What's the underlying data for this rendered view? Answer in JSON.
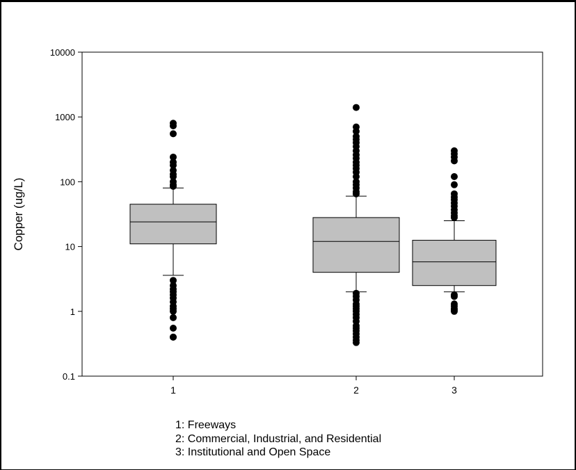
{
  "chart_data": {
    "type": "box",
    "y_scale": "log",
    "ylim": [
      0.1,
      10000
    ],
    "ylabel": "Copper (ug/L)",
    "y_ticks": [
      "0.1",
      "1",
      "10",
      "100",
      "1000",
      "10000"
    ],
    "categories": [
      "1",
      "2",
      "3"
    ],
    "box_fill": "#c0c0c0",
    "grid": false,
    "boxes": [
      {
        "category": "1",
        "whisker_low": 3.6,
        "q1": 11,
        "median": 24,
        "q3": 45,
        "whisker_high": 80,
        "outliers": [
          0.4,
          0.4,
          0.55,
          0.8,
          1.0,
          1.1,
          1.2,
          1.4,
          1.6,
          1.8,
          2.0,
          2.2,
          2.5,
          3.0,
          85,
          90,
          100,
          120,
          130,
          150,
          180,
          200,
          240,
          550,
          730,
          800
        ]
      },
      {
        "category": "2",
        "whisker_low": 2.0,
        "q1": 4.0,
        "median": 12,
        "q3": 28,
        "whisker_high": 60,
        "outliers": [
          0.33,
          0.36,
          0.4,
          0.45,
          0.5,
          0.55,
          0.6,
          0.7,
          0.8,
          0.9,
          1.0,
          1.1,
          1.2,
          1.3,
          1.5,
          1.7,
          1.9,
          65,
          70,
          80,
          90,
          100,
          120,
          140,
          160,
          180,
          200,
          230,
          260,
          300,
          350,
          400,
          450,
          500,
          600,
          700,
          1400
        ]
      },
      {
        "category": "3",
        "whisker_low": 2.0,
        "q1": 2.5,
        "median": 5.8,
        "q3": 12.5,
        "whisker_high": 25,
        "outliers": [
          1.0,
          1.05,
          1.1,
          1.2,
          1.3,
          1.7,
          1.8,
          28,
          30,
          33,
          37,
          42,
          47,
          53,
          58,
          65,
          90,
          120,
          210,
          240,
          270,
          300
        ]
      }
    ]
  },
  "legend": {
    "lines": [
      "1: Freeways",
      "2: Commercial, Industrial, and Residential",
      "3: Institutional and Open Space"
    ]
  }
}
